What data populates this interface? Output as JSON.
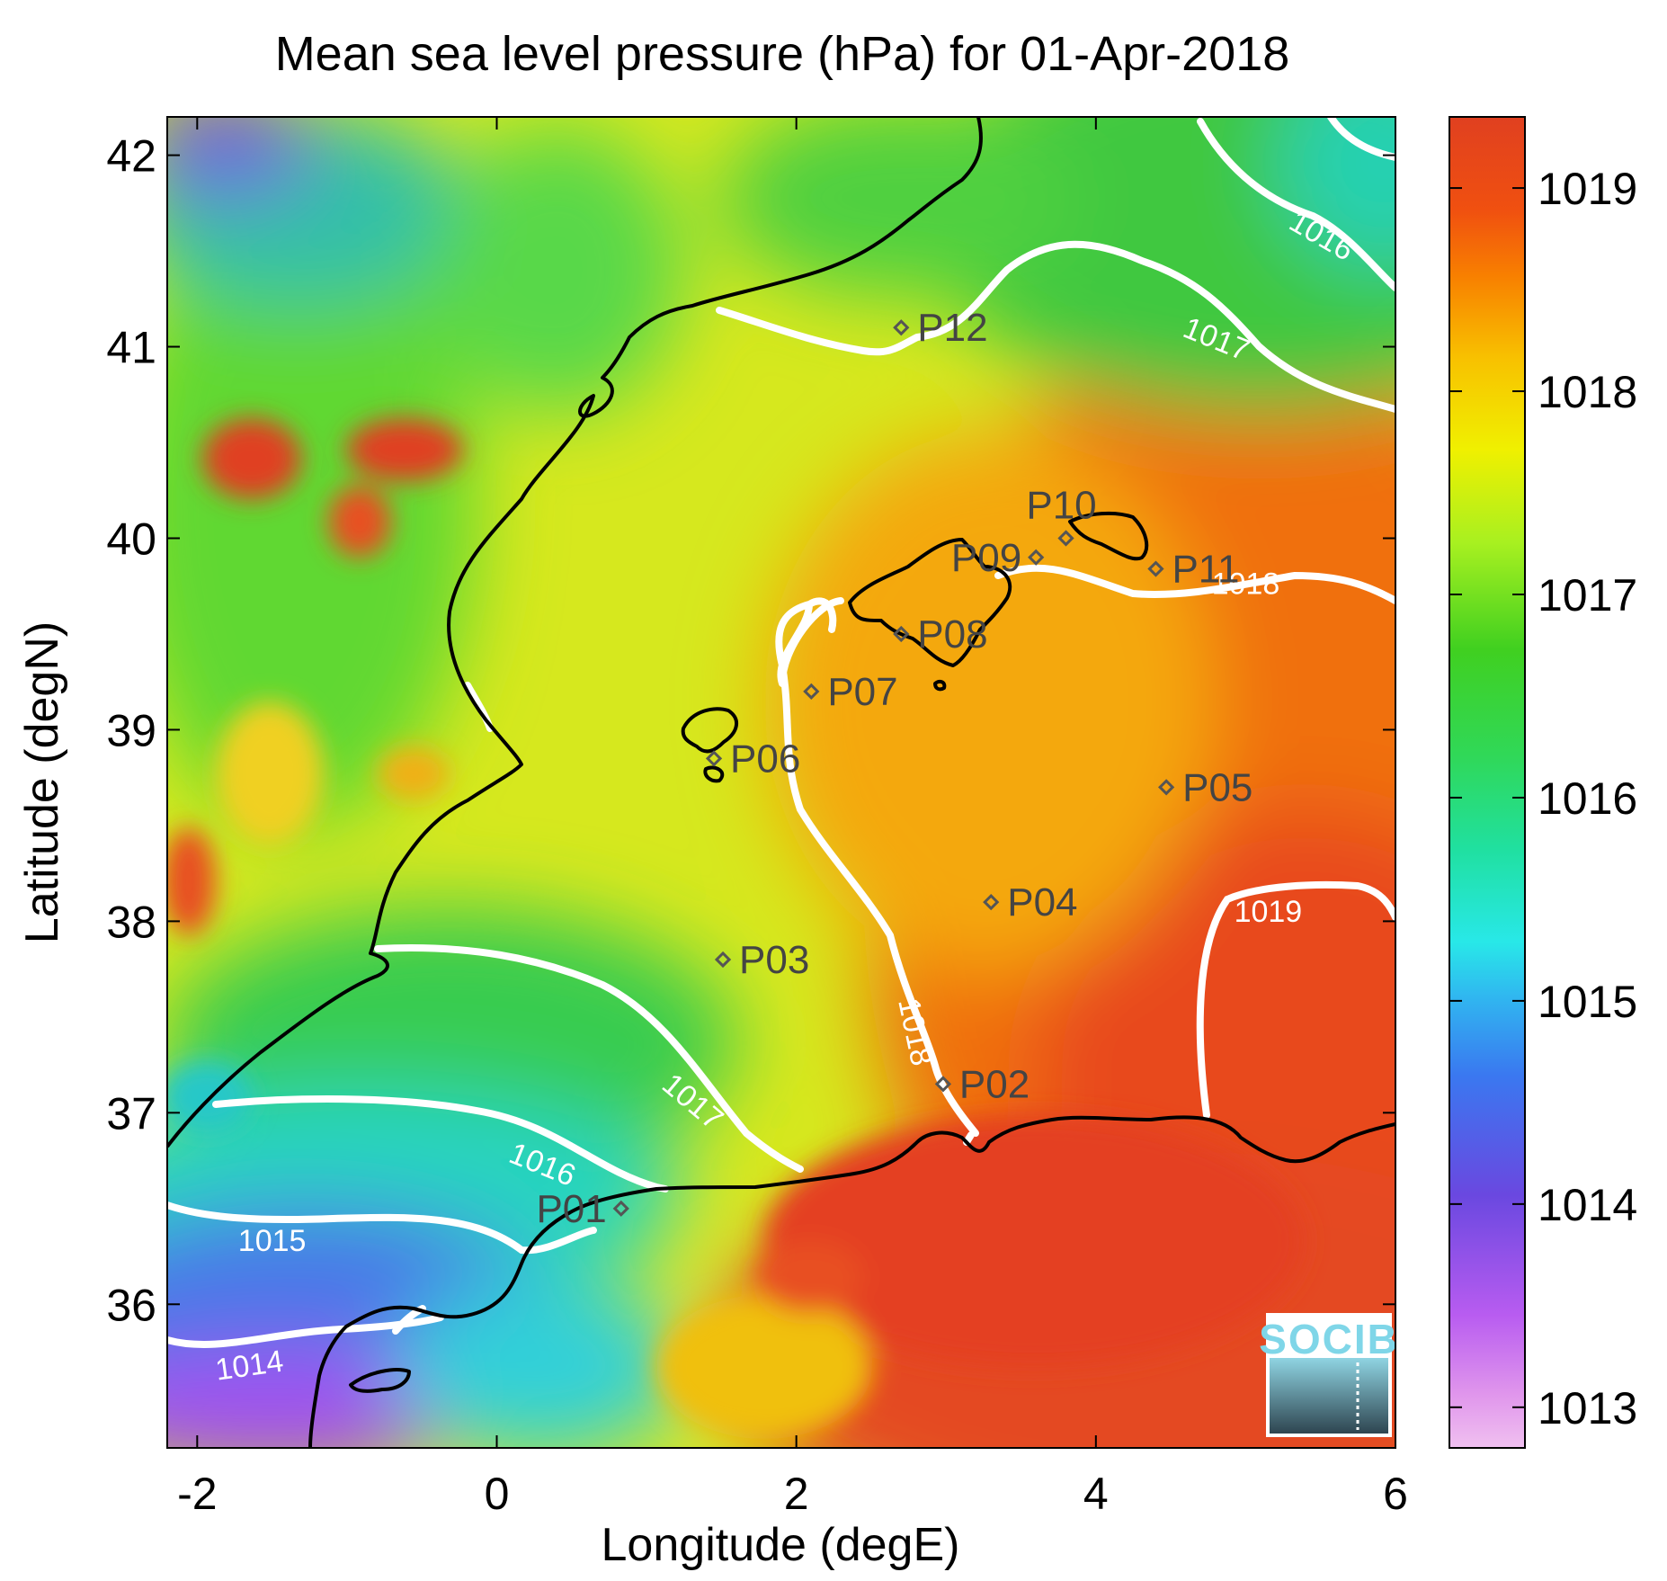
{
  "chart_data": {
    "type": "heatmap",
    "title": "Mean sea level pressure (hPa) for 01-Apr-2018",
    "xlabel": "Longitude (degE)",
    "ylabel": "Latitude (degN)",
    "xlim": [
      -2.2,
      6.0
    ],
    "ylim": [
      35.25,
      42.2
    ],
    "x_ticks": [
      -2,
      0,
      2,
      4,
      6
    ],
    "y_ticks": [
      36,
      37,
      38,
      39,
      40,
      41,
      42
    ],
    "colorbar": {
      "range": [
        1012.8,
        1019.35
      ],
      "ticks": [
        1013,
        1014,
        1015,
        1016,
        1017,
        1018,
        1019
      ]
    },
    "contour_labels": [
      {
        "text": "1014",
        "lon": -1.65,
        "lat": 35.67,
        "angle": -8
      },
      {
        "text": "1015",
        "lon": -1.5,
        "lat": 36.32,
        "angle": 0
      },
      {
        "text": "1016",
        "lon": 0.3,
        "lat": 36.72,
        "angle": 22
      },
      {
        "text": "1017",
        "lon": 1.3,
        "lat": 37.05,
        "angle": 40
      },
      {
        "text": "1018",
        "lon": 2.78,
        "lat": 37.42,
        "angle": 78
      },
      {
        "text": "1018",
        "lon": 5.0,
        "lat": 39.75,
        "angle": 0
      },
      {
        "text": "1019",
        "lon": 5.15,
        "lat": 38.04,
        "angle": 0
      },
      {
        "text": "1017",
        "lon": 4.8,
        "lat": 41.03,
        "angle": 22
      },
      {
        "text": "1016",
        "lon": 5.5,
        "lat": 41.57,
        "angle": 30
      }
    ],
    "stations": [
      {
        "name": "P01",
        "lon": 0.83,
        "lat": 36.5,
        "label_side": "left"
      },
      {
        "name": "P02",
        "lon": 2.98,
        "lat": 37.15,
        "label_side": "right"
      },
      {
        "name": "P03",
        "lon": 1.51,
        "lat": 37.8,
        "label_side": "right"
      },
      {
        "name": "P04",
        "lon": 3.3,
        "lat": 38.1,
        "label_side": "right"
      },
      {
        "name": "P05",
        "lon": 4.47,
        "lat": 38.7,
        "label_side": "right"
      },
      {
        "name": "P06",
        "lon": 1.45,
        "lat": 38.85,
        "label_side": "right"
      },
      {
        "name": "P07",
        "lon": 2.1,
        "lat": 39.2,
        "label_side": "right"
      },
      {
        "name": "P08",
        "lon": 2.7,
        "lat": 39.5,
        "label_side": "right"
      },
      {
        "name": "P09",
        "lon": 3.6,
        "lat": 39.9,
        "label_side": "left"
      },
      {
        "name": "P10",
        "lon": 3.8,
        "lat": 40.0,
        "label_side": "above"
      },
      {
        "name": "P11",
        "lon": 4.4,
        "lat": 39.84,
        "label_side": "right"
      },
      {
        "name": "P12",
        "lon": 2.7,
        "lat": 41.1,
        "label_side": "right"
      }
    ]
  },
  "logo": {
    "text": "SOCIB",
    "icon": "socib-logo"
  }
}
